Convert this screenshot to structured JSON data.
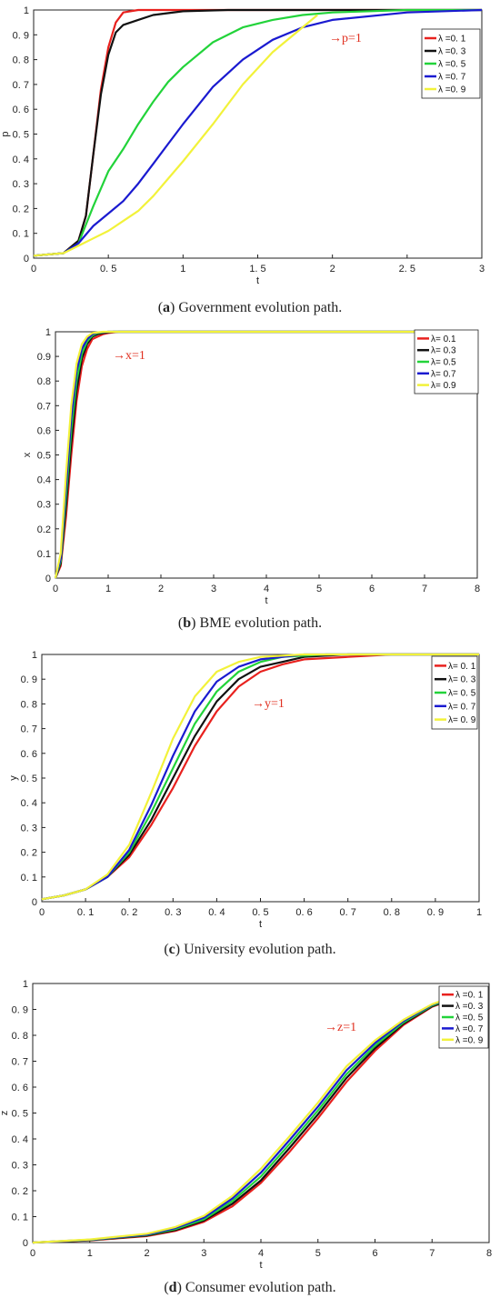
{
  "colors": {
    "red": "#e8211e",
    "black": "#111111",
    "green": "#22d33a",
    "blue": "#1a1ad0",
    "yellow": "#f2f23a",
    "annotation": "#e03020"
  },
  "captions": [
    {
      "label": "a",
      "text": " Government evolution path."
    },
    {
      "label": "b",
      "text": " BME evolution path."
    },
    {
      "label": "c",
      "text": " University evolution path."
    },
    {
      "label": "d",
      "text": " Consumer evolution path."
    }
  ],
  "chart_data": [
    {
      "type": "line",
      "xlabel": "t",
      "ylabel": "p",
      "xlim": [
        0,
        3
      ],
      "ylim": [
        0,
        1
      ],
      "xticks": [
        "0",
        "0. 5",
        "1",
        "1. 5",
        "2",
        "2. 5",
        "3"
      ],
      "yticks": [
        "0",
        "0. 1",
        "0. 2",
        "0. 3",
        "0. 4",
        "0. 5",
        "0. 6",
        "0. 7",
        "0. 8",
        "0. 9",
        "1"
      ],
      "annotation": "→p=1",
      "legend_position": "top-right",
      "series": [
        {
          "name": "λ =0. 1",
          "color": "red",
          "x": [
            0,
            0.2,
            0.3,
            0.35,
            0.4,
            0.45,
            0.5,
            0.55,
            0.6,
            0.7,
            0.8,
            1,
            3
          ],
          "y": [
            0.01,
            0.02,
            0.07,
            0.17,
            0.42,
            0.68,
            0.85,
            0.95,
            0.99,
            1,
            1,
            1,
            1
          ]
        },
        {
          "name": "λ =0. 3",
          "color": "black",
          "x": [
            0,
            0.2,
            0.3,
            0.35,
            0.4,
            0.45,
            0.5,
            0.55,
            0.6,
            0.7,
            0.8,
            1,
            1.3,
            3
          ],
          "y": [
            0.01,
            0.02,
            0.07,
            0.17,
            0.42,
            0.66,
            0.82,
            0.91,
            0.94,
            0.96,
            0.98,
            0.995,
            1,
            1
          ]
        },
        {
          "name": "λ =0. 5",
          "color": "green",
          "x": [
            0,
            0.2,
            0.3,
            0.4,
            0.5,
            0.6,
            0.7,
            0.8,
            0.9,
            1,
            1.2,
            1.4,
            1.6,
            1.8,
            2,
            2.5,
            3
          ],
          "y": [
            0.01,
            0.02,
            0.06,
            0.21,
            0.35,
            0.44,
            0.54,
            0.63,
            0.71,
            0.77,
            0.87,
            0.93,
            0.96,
            0.98,
            0.99,
            1,
            1
          ]
        },
        {
          "name": "λ =0. 7",
          "color": "blue",
          "x": [
            0,
            0.2,
            0.3,
            0.4,
            0.5,
            0.6,
            0.7,
            0.8,
            0.9,
            1,
            1.2,
            1.4,
            1.6,
            1.8,
            2,
            2.5,
            3
          ],
          "y": [
            0.01,
            0.02,
            0.06,
            0.13,
            0.18,
            0.23,
            0.3,
            0.38,
            0.46,
            0.54,
            0.69,
            0.8,
            0.88,
            0.93,
            0.96,
            0.99,
            1
          ]
        },
        {
          "name": "λ =0. 9",
          "color": "yellow",
          "x": [
            0,
            0.2,
            0.3,
            0.4,
            0.5,
            0.6,
            0.7,
            0.8,
            0.9,
            1,
            1.2,
            1.4,
            1.6,
            1.8,
            1.9
          ],
          "y": [
            0.01,
            0.02,
            0.05,
            0.08,
            0.11,
            0.15,
            0.19,
            0.25,
            0.32,
            0.39,
            0.54,
            0.7,
            0.83,
            0.93,
            0.98
          ]
        }
      ]
    },
    {
      "type": "line",
      "xlabel": "t",
      "ylabel": "x",
      "xlim": [
        0,
        8
      ],
      "ylim": [
        0,
        1
      ],
      "xticks": [
        "0",
        "1",
        "2",
        "3",
        "4",
        "5",
        "6",
        "7",
        "8"
      ],
      "yticks": [
        "0",
        "0.1",
        "0.2",
        "0.3",
        "0.4",
        "0.5",
        "0.6",
        "0.7",
        "0.8",
        "0.9",
        "1"
      ],
      "annotation": "→x=1",
      "legend_position": "top-right",
      "series": [
        {
          "name": "λ= 0.1",
          "color": "red",
          "x": [
            0,
            0.1,
            0.2,
            0.3,
            0.4,
            0.5,
            0.6,
            0.7,
            0.8,
            0.9,
            1,
            1.2,
            8
          ],
          "y": [
            0,
            0.05,
            0.25,
            0.5,
            0.72,
            0.86,
            0.93,
            0.97,
            0.98,
            0.99,
            0.995,
            1,
            1
          ]
        },
        {
          "name": "λ= 0.3",
          "color": "black",
          "x": [
            0,
            0.1,
            0.2,
            0.3,
            0.4,
            0.5,
            0.6,
            0.7,
            0.8,
            0.9,
            1.1,
            8
          ],
          "y": [
            0,
            0.06,
            0.29,
            0.55,
            0.76,
            0.89,
            0.95,
            0.98,
            0.99,
            0.995,
            1,
            1
          ]
        },
        {
          "name": "λ= 0.5",
          "color": "green",
          "x": [
            0,
            0.1,
            0.2,
            0.3,
            0.4,
            0.5,
            0.6,
            0.7,
            0.8,
            1,
            8
          ],
          "y": [
            0,
            0.07,
            0.33,
            0.6,
            0.8,
            0.91,
            0.96,
            0.985,
            0.995,
            1,
            1
          ]
        },
        {
          "name": "λ= 0.7",
          "color": "blue",
          "x": [
            0,
            0.1,
            0.2,
            0.3,
            0.4,
            0.5,
            0.6,
            0.7,
            0.8,
            1,
            8
          ],
          "y": [
            0,
            0.08,
            0.37,
            0.65,
            0.84,
            0.93,
            0.97,
            0.99,
            0.997,
            1,
            1
          ]
        },
        {
          "name": "λ= 0.9",
          "color": "yellow",
          "x": [
            0,
            0.1,
            0.2,
            0.3,
            0.4,
            0.5,
            0.6,
            0.7,
            0.9,
            8
          ],
          "y": [
            0,
            0.1,
            0.42,
            0.7,
            0.87,
            0.95,
            0.98,
            0.995,
            1,
            1
          ]
        }
      ]
    },
    {
      "type": "line",
      "xlabel": "t",
      "ylabel": "y",
      "xlim": [
        0,
        1
      ],
      "ylim": [
        0,
        1
      ],
      "xticks": [
        "0",
        "0. 1",
        "0. 2",
        "0. 3",
        "0. 4",
        "0. 5",
        "0. 6",
        "0. 7",
        "0. 8",
        "0. 9",
        "1"
      ],
      "yticks": [
        "0",
        "0. 1",
        "0. 2",
        "0. 3",
        "0. 4",
        "0. 5",
        "0. 6",
        "0. 7",
        "0. 8",
        "0. 9",
        "1"
      ],
      "annotation": "→y=1",
      "legend_position": "top-right",
      "series": [
        {
          "name": "λ= 0. 1",
          "color": "red",
          "x": [
            0,
            0.05,
            0.1,
            0.15,
            0.2,
            0.25,
            0.3,
            0.35,
            0.4,
            0.45,
            0.5,
            0.55,
            0.6,
            0.7,
            0.8,
            1
          ],
          "y": [
            0.01,
            0.025,
            0.05,
            0.1,
            0.18,
            0.31,
            0.46,
            0.63,
            0.77,
            0.87,
            0.93,
            0.96,
            0.98,
            0.99,
            1,
            1
          ]
        },
        {
          "name": "λ= 0. 3",
          "color": "black",
          "x": [
            0,
            0.05,
            0.1,
            0.15,
            0.2,
            0.25,
            0.3,
            0.35,
            0.4,
            0.45,
            0.5,
            0.55,
            0.6,
            0.7,
            1
          ],
          "y": [
            0.01,
            0.025,
            0.05,
            0.1,
            0.19,
            0.33,
            0.5,
            0.67,
            0.81,
            0.9,
            0.95,
            0.97,
            0.99,
            1,
            1
          ]
        },
        {
          "name": "λ= 0. 5",
          "color": "green",
          "x": [
            0,
            0.05,
            0.1,
            0.15,
            0.2,
            0.25,
            0.3,
            0.35,
            0.4,
            0.45,
            0.5,
            0.55,
            0.65,
            1
          ],
          "y": [
            0.01,
            0.025,
            0.05,
            0.1,
            0.2,
            0.36,
            0.54,
            0.72,
            0.85,
            0.93,
            0.97,
            0.99,
            1,
            1
          ]
        },
        {
          "name": "λ= 0. 7",
          "color": "blue",
          "x": [
            0,
            0.05,
            0.1,
            0.15,
            0.2,
            0.25,
            0.3,
            0.35,
            0.4,
            0.45,
            0.5,
            0.6,
            1
          ],
          "y": [
            0.01,
            0.025,
            0.05,
            0.1,
            0.21,
            0.39,
            0.59,
            0.77,
            0.89,
            0.95,
            0.98,
            1,
            1
          ]
        },
        {
          "name": "λ= 0. 9",
          "color": "yellow",
          "x": [
            0,
            0.05,
            0.1,
            0.15,
            0.2,
            0.25,
            0.3,
            0.35,
            0.4,
            0.45,
            0.5,
            0.6,
            1
          ],
          "y": [
            0.01,
            0.025,
            0.05,
            0.11,
            0.23,
            0.44,
            0.66,
            0.83,
            0.93,
            0.97,
            0.99,
            1,
            1
          ]
        }
      ]
    },
    {
      "type": "line",
      "xlabel": "t",
      "ylabel": "z",
      "xlim": [
        0,
        8
      ],
      "ylim": [
        0,
        1
      ],
      "xticks": [
        "0",
        "1",
        "2",
        "3",
        "4",
        "5",
        "6",
        "7",
        "8"
      ],
      "yticks": [
        "0",
        "0. 1",
        "0. 2",
        "0. 3",
        "0. 4",
        "0. 5",
        "0. 6",
        "0. 7",
        "0. 8",
        "0. 9",
        "1"
      ],
      "annotation": "→z=1",
      "legend_position": "top-right",
      "series": [
        {
          "name": "λ =0. 1",
          "color": "red",
          "x": [
            0,
            1,
            2,
            2.5,
            3,
            3.5,
            4,
            4.5,
            5,
            5.5,
            6,
            6.5,
            7,
            7.5
          ],
          "y": [
            0,
            0.008,
            0.025,
            0.045,
            0.08,
            0.14,
            0.23,
            0.35,
            0.48,
            0.62,
            0.74,
            0.84,
            0.91,
            0.95
          ]
        },
        {
          "name": "λ =0. 3",
          "color": "black",
          "x": [
            0,
            1,
            2,
            2.5,
            3,
            3.5,
            4,
            4.5,
            5,
            5.5,
            6,
            6.5,
            7,
            7.5
          ],
          "y": [
            0,
            0.009,
            0.027,
            0.048,
            0.085,
            0.15,
            0.24,
            0.365,
            0.495,
            0.635,
            0.75,
            0.845,
            0.912,
            0.952
          ]
        },
        {
          "name": "λ =0. 5",
          "color": "green",
          "x": [
            0,
            1,
            2,
            2.5,
            3,
            3.5,
            4,
            4.5,
            5,
            5.5,
            6,
            6.5,
            7,
            7.5
          ],
          "y": [
            0,
            0.01,
            0.029,
            0.052,
            0.09,
            0.16,
            0.255,
            0.38,
            0.51,
            0.65,
            0.76,
            0.85,
            0.915,
            0.955
          ]
        },
        {
          "name": "λ =0. 7",
          "color": "blue",
          "x": [
            0,
            1,
            2,
            2.5,
            3,
            3.5,
            4,
            4.5,
            5,
            5.5,
            6,
            6.5,
            7,
            7.5
          ],
          "y": [
            0,
            0.011,
            0.031,
            0.056,
            0.096,
            0.17,
            0.27,
            0.395,
            0.525,
            0.665,
            0.77,
            0.855,
            0.918,
            0.958
          ]
        },
        {
          "name": "λ =0. 9",
          "color": "yellow",
          "x": [
            0,
            1,
            2,
            2.5,
            3,
            3.5,
            4,
            4.5,
            5,
            5.5,
            6,
            6.5,
            7,
            7.5
          ],
          "y": [
            0,
            0.012,
            0.034,
            0.06,
            0.103,
            0.18,
            0.285,
            0.41,
            0.54,
            0.68,
            0.78,
            0.86,
            0.92,
            0.96
          ]
        }
      ]
    }
  ]
}
